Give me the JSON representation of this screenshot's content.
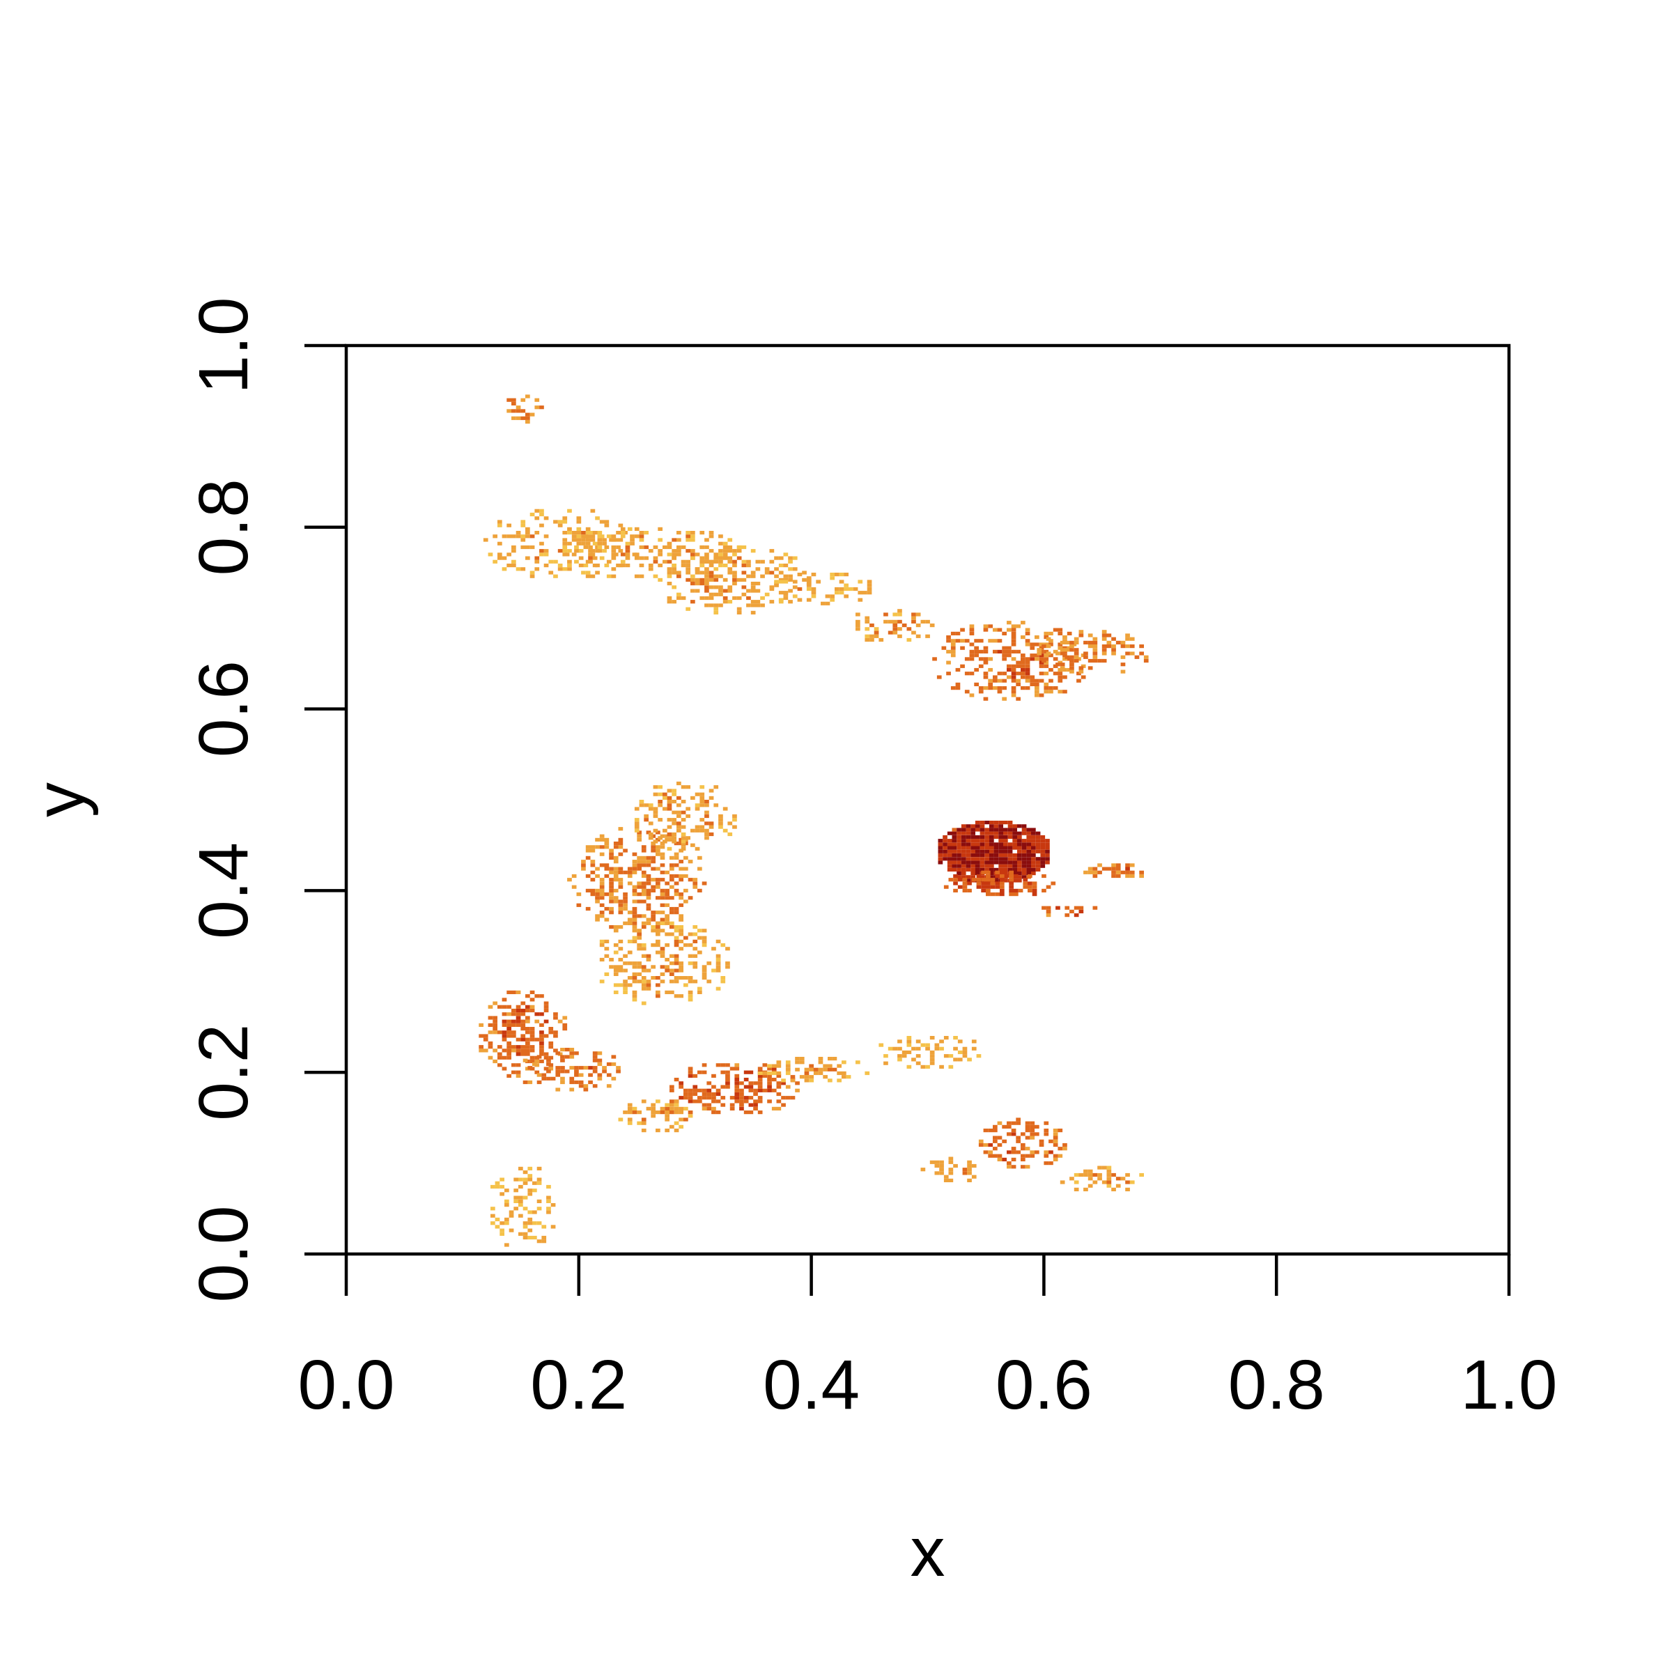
{
  "chart_data": {
    "type": "heatmap",
    "title": "",
    "xlabel": "x",
    "ylabel": "y",
    "xlim": [
      0,
      1
    ],
    "ylim": [
      0,
      1
    ],
    "x_ticks": [
      "0.0",
      "0.2",
      "0.4",
      "0.6",
      "0.8",
      "1.0"
    ],
    "y_ticks": [
      "0.0",
      "0.2",
      "0.4",
      "0.6",
      "0.8",
      "1.0"
    ],
    "grid": false,
    "legend": "none",
    "colors": {
      "low": "#f5c24a",
      "mid_low": "#eea23a",
      "mid": "#e06a1e",
      "mid_high": "#c8380f",
      "high": "#8b0d0d",
      "axis": "#000000",
      "background": "#ffffff"
    },
    "regions": [
      {
        "x": 0.18,
        "y": 0.78,
        "rx": 0.07,
        "ry": 0.04,
        "level": 0.25
      },
      {
        "x": 0.26,
        "y": 0.77,
        "rx": 0.08,
        "ry": 0.03,
        "level": 0.3
      },
      {
        "x": 0.33,
        "y": 0.74,
        "rx": 0.07,
        "ry": 0.04,
        "level": 0.3
      },
      {
        "x": 0.41,
        "y": 0.73,
        "rx": 0.05,
        "ry": 0.02,
        "level": 0.25
      },
      {
        "x": 0.47,
        "y": 0.69,
        "rx": 0.04,
        "ry": 0.02,
        "level": 0.3
      },
      {
        "x": 0.57,
        "y": 0.65,
        "rx": 0.07,
        "ry": 0.045,
        "level": 0.5
      },
      {
        "x": 0.64,
        "y": 0.66,
        "rx": 0.05,
        "ry": 0.025,
        "level": 0.45
      },
      {
        "x": 0.25,
        "y": 0.41,
        "rx": 0.06,
        "ry": 0.06,
        "level": 0.45
      },
      {
        "x": 0.27,
        "y": 0.32,
        "rx": 0.06,
        "ry": 0.05,
        "level": 0.3
      },
      {
        "x": 0.29,
        "y": 0.48,
        "rx": 0.05,
        "ry": 0.04,
        "level": 0.3
      },
      {
        "x": 0.555,
        "y": 0.44,
        "rx": 0.05,
        "ry": 0.035,
        "level": 0.92
      },
      {
        "x": 0.56,
        "y": 0.405,
        "rx": 0.05,
        "ry": 0.015,
        "level": 0.7
      },
      {
        "x": 0.62,
        "y": 0.375,
        "rx": 0.03,
        "ry": 0.008,
        "level": 0.6
      },
      {
        "x": 0.66,
        "y": 0.42,
        "rx": 0.03,
        "ry": 0.01,
        "level": 0.5
      },
      {
        "x": 0.15,
        "y": 0.24,
        "rx": 0.04,
        "ry": 0.05,
        "level": 0.55
      },
      {
        "x": 0.19,
        "y": 0.2,
        "rx": 0.05,
        "ry": 0.025,
        "level": 0.5
      },
      {
        "x": 0.33,
        "y": 0.18,
        "rx": 0.06,
        "ry": 0.03,
        "level": 0.6
      },
      {
        "x": 0.27,
        "y": 0.15,
        "rx": 0.04,
        "ry": 0.02,
        "level": 0.3
      },
      {
        "x": 0.4,
        "y": 0.2,
        "rx": 0.05,
        "ry": 0.015,
        "level": 0.3
      },
      {
        "x": 0.5,
        "y": 0.22,
        "rx": 0.05,
        "ry": 0.02,
        "level": 0.25
      },
      {
        "x": 0.58,
        "y": 0.12,
        "rx": 0.04,
        "ry": 0.03,
        "level": 0.55
      },
      {
        "x": 0.65,
        "y": 0.08,
        "rx": 0.04,
        "ry": 0.015,
        "level": 0.3
      },
      {
        "x": 0.52,
        "y": 0.09,
        "rx": 0.03,
        "ry": 0.015,
        "level": 0.3
      },
      {
        "x": 0.15,
        "y": 0.05,
        "rx": 0.03,
        "ry": 0.05,
        "level": 0.2
      },
      {
        "x": 0.15,
        "y": 0.93,
        "rx": 0.02,
        "ry": 0.02,
        "level": 0.4
      }
    ]
  }
}
